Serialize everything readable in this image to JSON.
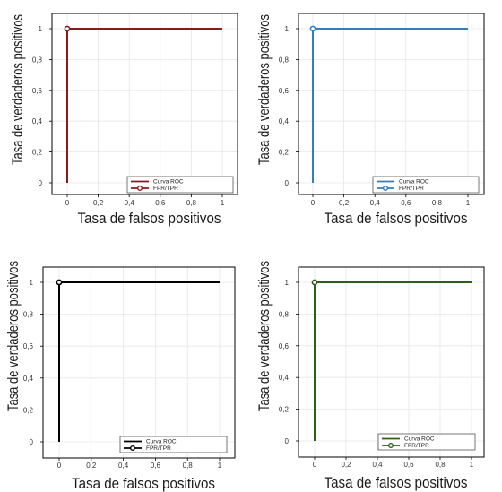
{
  "chart_data": [
    {
      "type": "line",
      "xlabel": "Tasa de falsos positivos",
      "ylabel": "Tasa de verdaderos positivos",
      "xlim": [
        0,
        1
      ],
      "ylim": [
        0,
        1
      ],
      "xticks": [
        "0",
        "0,2",
        "0,4",
        "0,6",
        "0,8",
        "1"
      ],
      "yticks": [
        "0",
        "0,2",
        "0,4",
        "0,6",
        "0,8",
        "1"
      ],
      "grid": true,
      "legend_position": "bottom-right",
      "color": "#8b1a1a",
      "series": [
        {
          "name": "Curva ROC",
          "x": [
            0,
            0,
            1
          ],
          "y": [
            0,
            1,
            1
          ]
        },
        {
          "name": "FPR/TPR",
          "x": [
            0
          ],
          "y": [
            1
          ],
          "marker": "circle"
        }
      ]
    },
    {
      "type": "line",
      "xlabel": "Tasa de falsos positivos",
      "ylabel": "Tasa de verdaderos positivos",
      "xlim": [
        0,
        1
      ],
      "ylim": [
        0,
        1
      ],
      "xticks": [
        "0",
        "0,2",
        "0,4",
        "0,6",
        "0,8",
        "1"
      ],
      "yticks": [
        "0",
        "0,2",
        "0,4",
        "0,6",
        "0,8",
        "1"
      ],
      "grid": true,
      "legend_position": "bottom-right",
      "color": "#2f7fc1",
      "series": [
        {
          "name": "Curva ROC",
          "x": [
            0,
            0,
            1
          ],
          "y": [
            0,
            1,
            1
          ]
        },
        {
          "name": "FPR/TPR",
          "x": [
            0
          ],
          "y": [
            1
          ],
          "marker": "circle"
        }
      ]
    },
    {
      "type": "line",
      "xlabel": "Tasa de falsos positivos",
      "ylabel": "Tasa de verdaderos positivos",
      "xlim": [
        0,
        1
      ],
      "ylim": [
        0,
        1
      ],
      "xticks": [
        "0",
        "0,2",
        "0,4",
        "0,6",
        "0,8",
        "1"
      ],
      "yticks": [
        "0",
        "0,2",
        "0,4",
        "0,6",
        "0,8",
        "1"
      ],
      "grid": true,
      "legend_position": "bottom-right",
      "color": "#000000",
      "series": [
        {
          "name": "Curva ROC",
          "x": [
            0,
            0,
            1
          ],
          "y": [
            0,
            1,
            1
          ]
        },
        {
          "name": "FPR/TPR",
          "x": [
            0
          ],
          "y": [
            1
          ],
          "marker": "circle"
        }
      ]
    },
    {
      "type": "line",
      "xlabel": "Tasa de falsos positivos",
      "ylabel": "Tasa de verdaderos positivos",
      "xlim": [
        0,
        1
      ],
      "ylim": [
        0,
        1
      ],
      "xticks": [
        "0",
        "0,2",
        "0,4",
        "0,6",
        "0,8",
        "1"
      ],
      "yticks": [
        "0",
        "0,2",
        "0,4",
        "0,6",
        "0,8",
        "1"
      ],
      "grid": true,
      "legend_position": "bottom-right",
      "color": "#2e5e1e",
      "series": [
        {
          "name": "Curva ROC",
          "x": [
            0,
            0,
            1
          ],
          "y": [
            0,
            1,
            1
          ]
        },
        {
          "name": "FPR/TPR",
          "x": [
            0
          ],
          "y": [
            1
          ],
          "marker": "circle"
        }
      ]
    }
  ]
}
